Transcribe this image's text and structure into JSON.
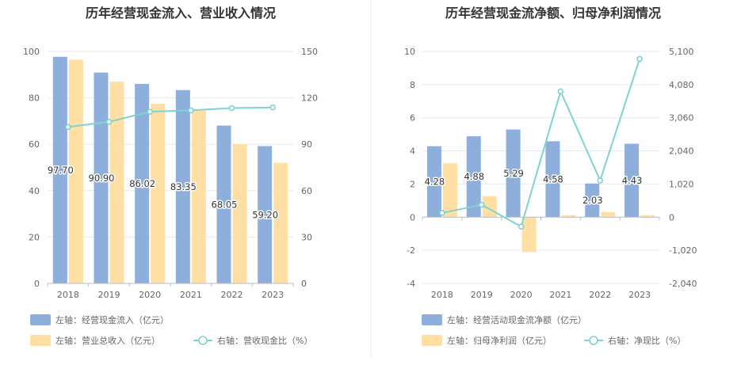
{
  "chart_data": [
    {
      "type": "bar",
      "title": "历年经营现金流入、营业收入情况",
      "categories": [
        "2018",
        "2019",
        "2020",
        "2021",
        "2022",
        "2023"
      ],
      "left_axis": {
        "min": 0,
        "max": 100,
        "ticks": [
          "0",
          "20",
          "40",
          "60",
          "80",
          "100"
        ]
      },
      "right_axis": {
        "min": 0,
        "max": 150,
        "ticks": [
          "0",
          "30",
          "60",
          "90",
          "120",
          "150"
        ]
      },
      "series": [
        {
          "name": "左轴：经营现金流入（亿元）",
          "kind": "bar",
          "axis": "left",
          "color": "#8eaedc",
          "values": [
            97.7,
            90.9,
            86.02,
            83.35,
            68.05,
            59.2
          ],
          "labels": [
            "97.70",
            "90.90",
            "86.02",
            "83.35",
            "68.05",
            "59.20"
          ]
        },
        {
          "name": "左轴：营业总收入（亿元）",
          "kind": "bar",
          "axis": "left",
          "color": "#ffdfa3",
          "values": [
            96.5,
            87.0,
            77.5,
            74.5,
            60.0,
            52.0
          ]
        },
        {
          "name": "右轴：营收现金比（%）",
          "kind": "line",
          "axis": "right",
          "color": "#7fd3d0",
          "values": [
            101.2,
            104.5,
            111.0,
            111.9,
            113.4,
            113.8
          ]
        }
      ]
    },
    {
      "type": "bar",
      "title": "历年经营现金流净额、归母净利润情况",
      "categories": [
        "2018",
        "2019",
        "2020",
        "2021",
        "2022",
        "2023"
      ],
      "left_axis": {
        "min": -4,
        "max": 10,
        "ticks": [
          "-4",
          "-2",
          "0",
          "2",
          "4",
          "6",
          "8",
          "10"
        ]
      },
      "right_axis": {
        "min": -2040,
        "max": 5100,
        "ticks": [
          "-2,040",
          "-1,020",
          "0",
          "1,020",
          "2,040",
          "3,060",
          "4,080",
          "5,100"
        ]
      },
      "series": [
        {
          "name": "左轴：经营活动现金流净额（亿元）",
          "kind": "bar",
          "axis": "left",
          "color": "#8eaedc",
          "values": [
            4.28,
            4.88,
            5.29,
            4.58,
            2.03,
            4.43
          ],
          "labels": [
            "4.28",
            "4.88",
            "5.29",
            "4.58",
            "2.03",
            "4.43"
          ]
        },
        {
          "name": "左轴：归母净利润（亿元）",
          "kind": "bar",
          "axis": "left",
          "color": "#ffdfa3",
          "values": [
            3.25,
            1.27,
            -2.1,
            0.12,
            0.3,
            0.12
          ]
        },
        {
          "name": "右轴：净现比（%）",
          "kind": "line",
          "axis": "right",
          "color": "#7fd3d0",
          "values": [
            130,
            380,
            -290,
            3870,
            1130,
            4870
          ]
        }
      ]
    }
  ]
}
